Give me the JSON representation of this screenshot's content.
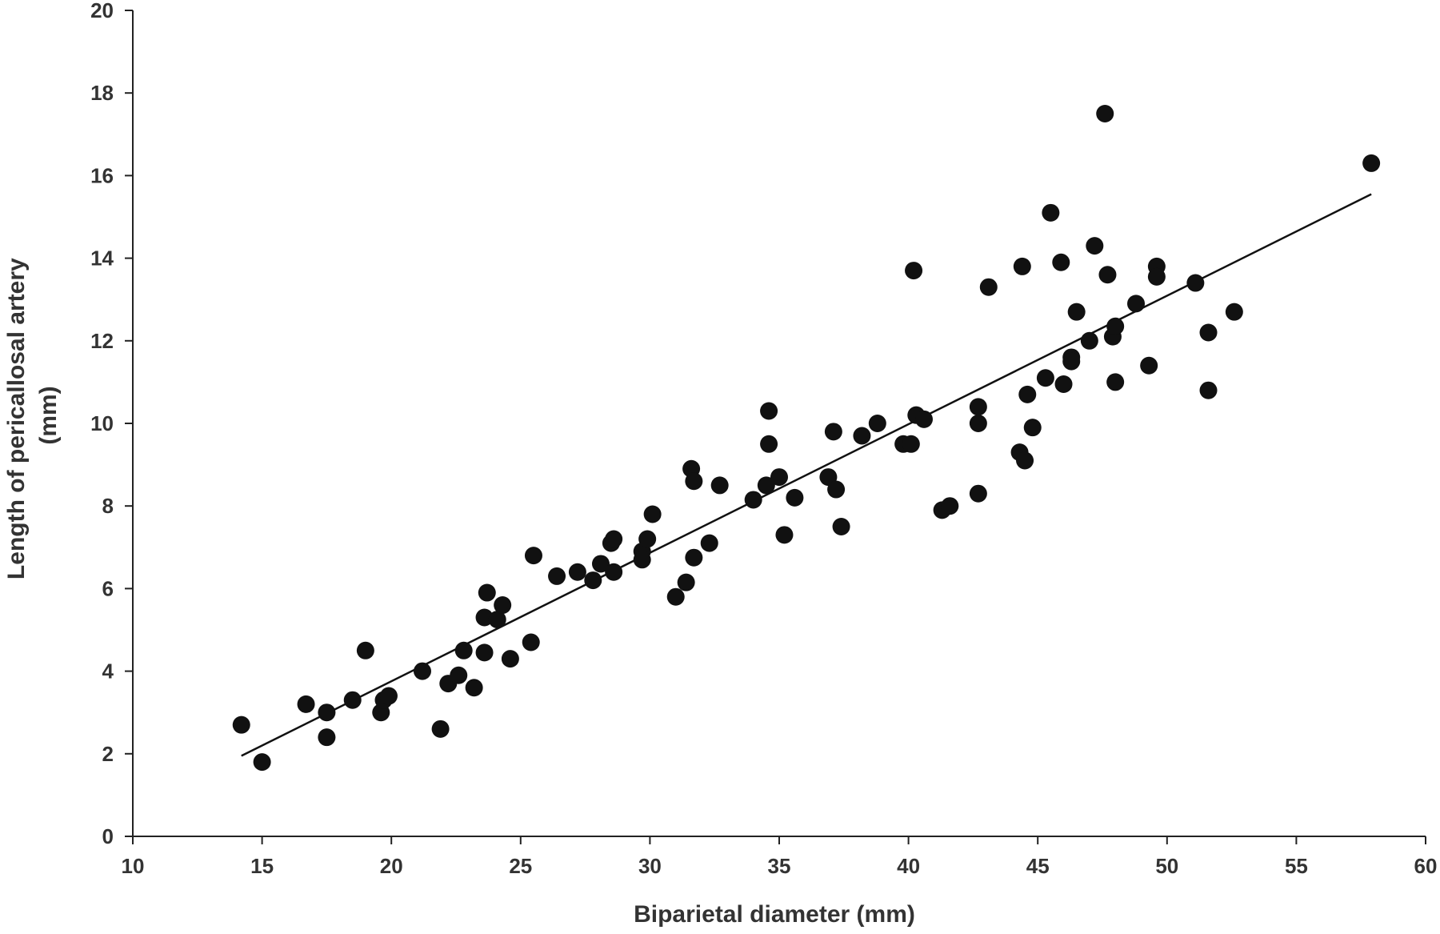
{
  "chart_data": {
    "type": "scatter",
    "xlabel": "Biparietal diameter (mm)",
    "ylabel_lines": [
      "Length of pericallosal artery",
      "(mm)"
    ],
    "xlim": [
      10,
      60
    ],
    "ylim": [
      0,
      20
    ],
    "x_ticks": [
      10,
      15,
      20,
      25,
      30,
      35,
      40,
      45,
      50,
      55,
      60
    ],
    "y_ticks": [
      0,
      2,
      4,
      6,
      8,
      10,
      12,
      14,
      16,
      18,
      20
    ],
    "grid": false,
    "legend": "none",
    "point_color": "#111111",
    "trendline": {
      "x": [
        14.2,
        57.9
      ],
      "y": [
        1.95,
        15.55
      ]
    },
    "points": [
      {
        "x": 14.2,
        "y": 2.7
      },
      {
        "x": 15.0,
        "y": 1.8
      },
      {
        "x": 16.7,
        "y": 3.2
      },
      {
        "x": 17.5,
        "y": 3.0
      },
      {
        "x": 17.5,
        "y": 2.4
      },
      {
        "x": 18.5,
        "y": 3.3
      },
      {
        "x": 19.0,
        "y": 4.5
      },
      {
        "x": 19.6,
        "y": 3.0
      },
      {
        "x": 19.7,
        "y": 3.3
      },
      {
        "x": 19.9,
        "y": 3.4
      },
      {
        "x": 21.2,
        "y": 4.0
      },
      {
        "x": 21.9,
        "y": 2.6
      },
      {
        "x": 22.2,
        "y": 3.7
      },
      {
        "x": 22.6,
        "y": 3.9
      },
      {
        "x": 22.8,
        "y": 4.5
      },
      {
        "x": 23.2,
        "y": 3.6
      },
      {
        "x": 23.6,
        "y": 4.45
      },
      {
        "x": 23.6,
        "y": 5.3
      },
      {
        "x": 23.7,
        "y": 5.9
      },
      {
        "x": 24.1,
        "y": 5.25
      },
      {
        "x": 24.3,
        "y": 5.6
      },
      {
        "x": 24.6,
        "y": 4.3
      },
      {
        "x": 25.4,
        "y": 4.7
      },
      {
        "x": 25.5,
        "y": 6.8
      },
      {
        "x": 26.4,
        "y": 6.3
      },
      {
        "x": 27.2,
        "y": 6.4
      },
      {
        "x": 27.8,
        "y": 6.2
      },
      {
        "x": 28.1,
        "y": 6.6
      },
      {
        "x": 28.5,
        "y": 7.1
      },
      {
        "x": 28.6,
        "y": 7.2
      },
      {
        "x": 28.6,
        "y": 6.4
      },
      {
        "x": 29.7,
        "y": 6.9
      },
      {
        "x": 29.7,
        "y": 6.7
      },
      {
        "x": 29.9,
        "y": 7.2
      },
      {
        "x": 30.1,
        "y": 7.8
      },
      {
        "x": 31.0,
        "y": 5.8
      },
      {
        "x": 31.4,
        "y": 6.15
      },
      {
        "x": 31.6,
        "y": 8.9
      },
      {
        "x": 31.7,
        "y": 8.6
      },
      {
        "x": 31.7,
        "y": 6.75
      },
      {
        "x": 32.3,
        "y": 7.1
      },
      {
        "x": 32.7,
        "y": 8.5
      },
      {
        "x": 34.0,
        "y": 8.15
      },
      {
        "x": 34.5,
        "y": 8.5
      },
      {
        "x": 34.6,
        "y": 10.3
      },
      {
        "x": 34.6,
        "y": 9.5
      },
      {
        "x": 35.0,
        "y": 8.7
      },
      {
        "x": 35.2,
        "y": 7.3
      },
      {
        "x": 35.6,
        "y": 8.2
      },
      {
        "x": 36.9,
        "y": 8.7
      },
      {
        "x": 37.1,
        "y": 9.8
      },
      {
        "x": 37.2,
        "y": 8.4
      },
      {
        "x": 37.4,
        "y": 7.5
      },
      {
        "x": 38.2,
        "y": 9.7
      },
      {
        "x": 38.8,
        "y": 10.0
      },
      {
        "x": 39.8,
        "y": 9.5
      },
      {
        "x": 40.1,
        "y": 9.5
      },
      {
        "x": 40.2,
        "y": 13.7
      },
      {
        "x": 40.3,
        "y": 10.2
      },
      {
        "x": 40.6,
        "y": 10.1
      },
      {
        "x": 41.3,
        "y": 7.9
      },
      {
        "x": 41.6,
        "y": 8.0
      },
      {
        "x": 42.7,
        "y": 10.4
      },
      {
        "x": 42.7,
        "y": 10.0
      },
      {
        "x": 42.7,
        "y": 8.3
      },
      {
        "x": 43.1,
        "y": 13.3
      },
      {
        "x": 44.3,
        "y": 9.3
      },
      {
        "x": 44.4,
        "y": 13.8
      },
      {
        "x": 44.5,
        "y": 9.1
      },
      {
        "x": 44.6,
        "y": 10.7
      },
      {
        "x": 44.8,
        "y": 9.9
      },
      {
        "x": 45.3,
        "y": 11.1
      },
      {
        "x": 45.5,
        "y": 15.1
      },
      {
        "x": 45.9,
        "y": 13.9
      },
      {
        "x": 46.0,
        "y": 10.95
      },
      {
        "x": 46.3,
        "y": 11.6
      },
      {
        "x": 46.3,
        "y": 11.5
      },
      {
        "x": 46.5,
        "y": 12.7
      },
      {
        "x": 47.0,
        "y": 12.0
      },
      {
        "x": 47.2,
        "y": 14.3
      },
      {
        "x": 47.6,
        "y": 17.5
      },
      {
        "x": 47.7,
        "y": 13.6
      },
      {
        "x": 47.9,
        "y": 12.1
      },
      {
        "x": 48.0,
        "y": 12.35
      },
      {
        "x": 48.0,
        "y": 11.0
      },
      {
        "x": 48.8,
        "y": 12.9
      },
      {
        "x": 49.3,
        "y": 11.4
      },
      {
        "x": 49.6,
        "y": 13.8
      },
      {
        "x": 49.6,
        "y": 13.55
      },
      {
        "x": 51.1,
        "y": 13.4
      },
      {
        "x": 51.6,
        "y": 12.2
      },
      {
        "x": 51.6,
        "y": 10.8
      },
      {
        "x": 52.6,
        "y": 12.7
      },
      {
        "x": 57.9,
        "y": 16.3
      }
    ]
  }
}
